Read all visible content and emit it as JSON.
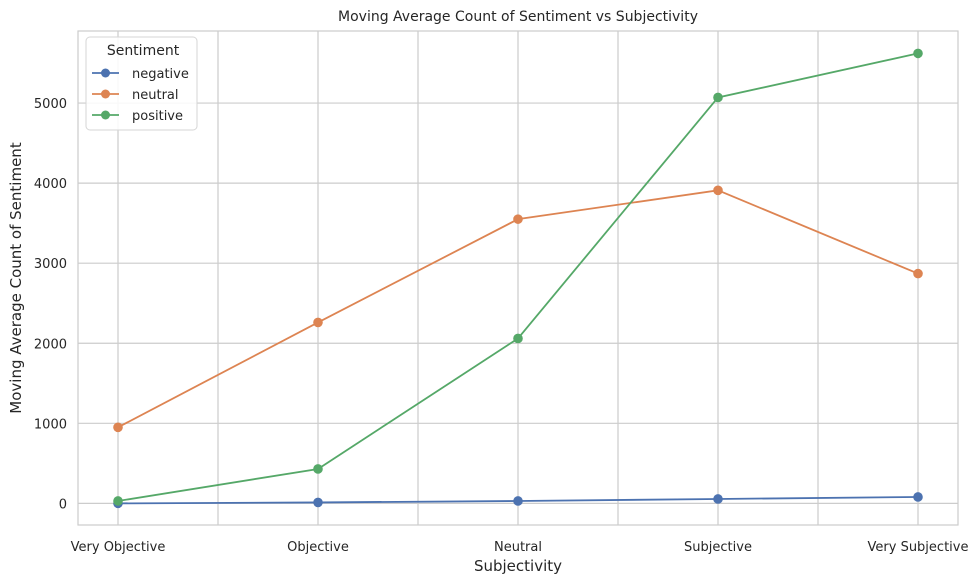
{
  "chart_data": {
    "type": "line",
    "title": "Moving Average Count of Sentiment vs Subjectivity",
    "xlabel": "Subjectivity",
    "ylabel": "Moving Average Count of Sentiment",
    "categories": [
      "Very Objective",
      "Objective",
      "Neutral",
      "Subjective",
      "Very Subjective"
    ],
    "ylim": [
      -270,
      5900
    ],
    "yticks": [
      "0",
      "1000",
      "2000",
      "3000",
      "4000",
      "5000"
    ],
    "ytick_values": [
      0,
      1000,
      2000,
      3000,
      4000,
      5000
    ],
    "grid": true,
    "legend": {
      "title": "Sentiment",
      "placement": "top-left"
    },
    "series": [
      {
        "name": "negative",
        "color": "#4c72b0",
        "values": [
          0,
          12,
          30,
          55,
          80
        ]
      },
      {
        "name": "neutral",
        "color": "#dd8452",
        "values": [
          950,
          2260,
          3550,
          3910,
          2870
        ]
      },
      {
        "name": "positive",
        "color": "#55a868",
        "values": [
          30,
          430,
          2060,
          5070,
          5620
        ]
      }
    ]
  }
}
